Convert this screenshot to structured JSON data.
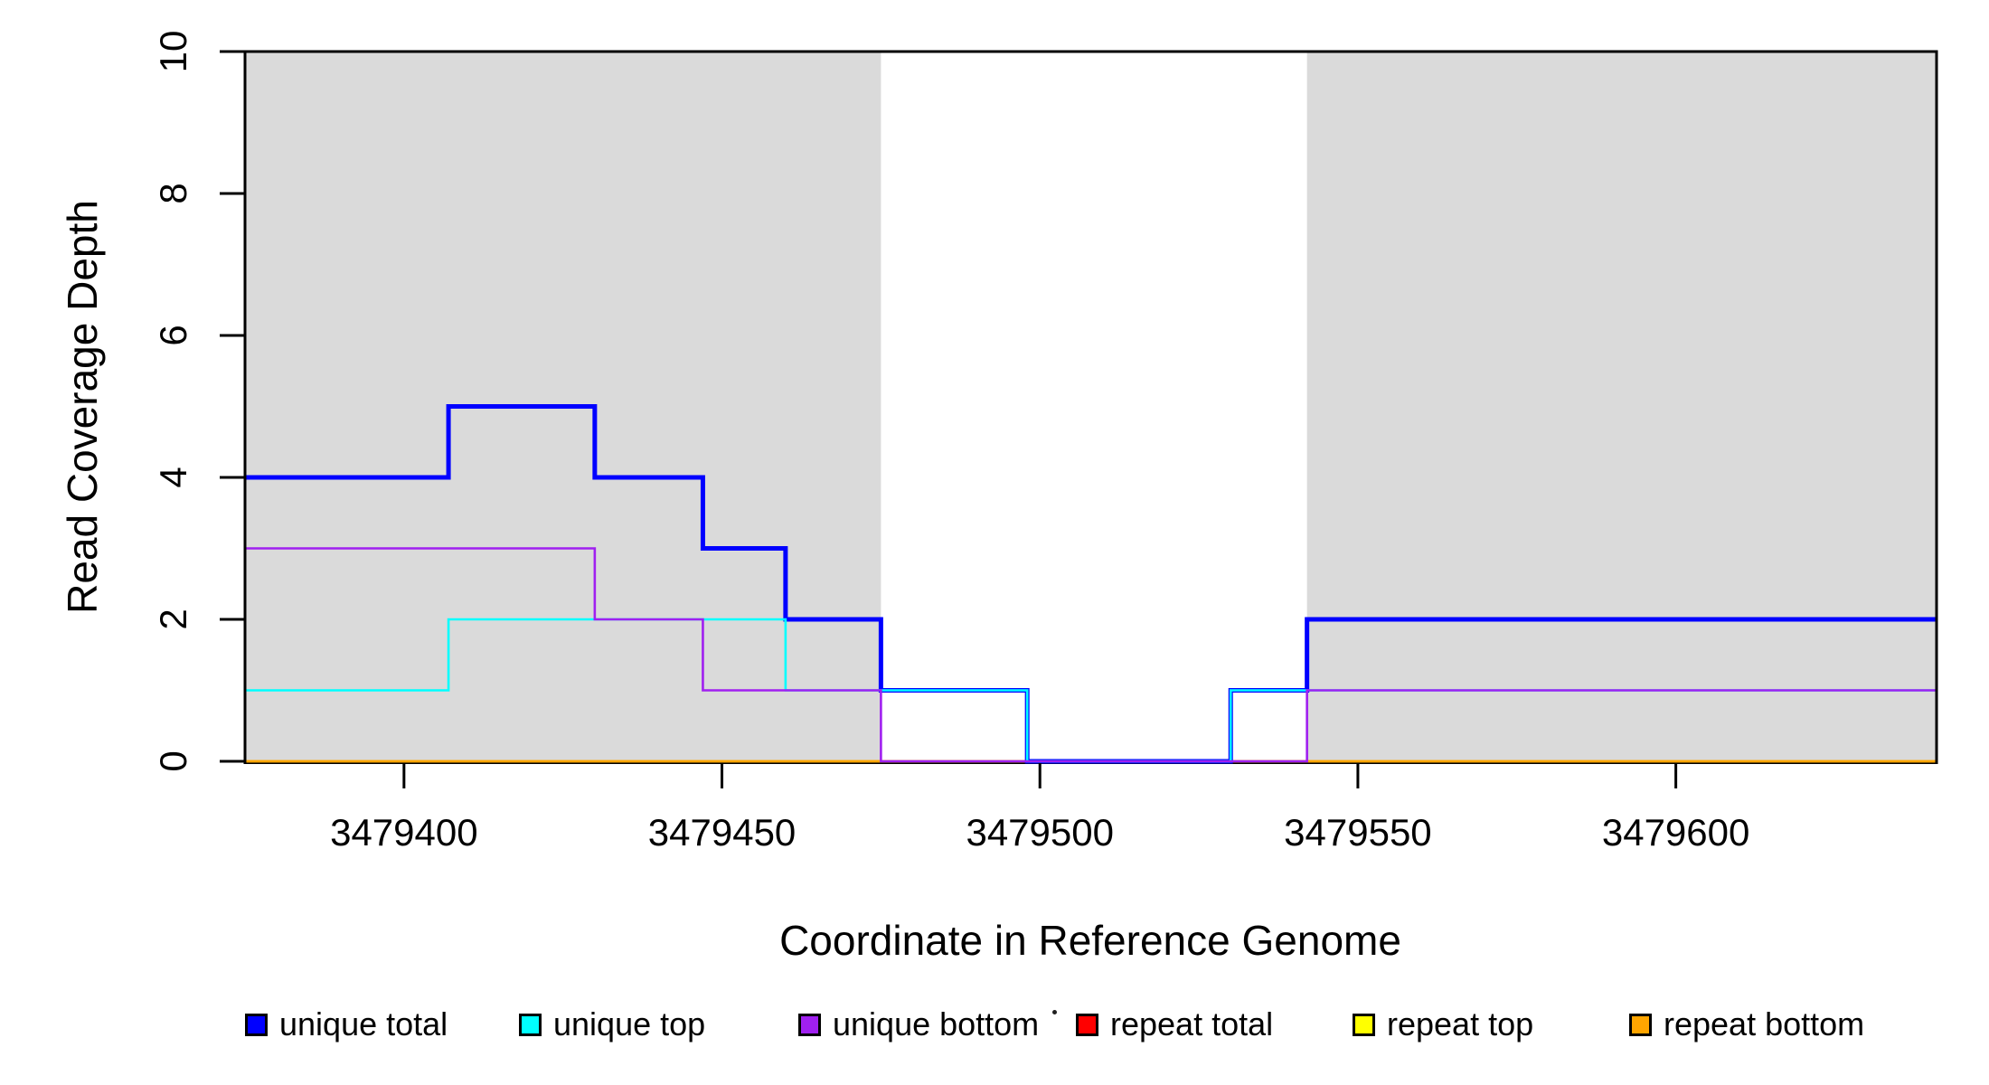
{
  "chart_data": {
    "type": "line",
    "step_mode": "after",
    "title": "",
    "xlabel": "Coordinate in Reference Genome",
    "ylabel": "Read Coverage Depth",
    "xlim": [
      3479375,
      3479641
    ],
    "ylim": [
      0,
      10
    ],
    "x_ticks": [
      "3479400",
      "3479450",
      "3479500",
      "3479550",
      "3479600"
    ],
    "x_tick_values": [
      3479400,
      3479450,
      3479500,
      3479550,
      3479600
    ],
    "y_ticks": [
      "0",
      "2",
      "4",
      "6",
      "8",
      "10"
    ],
    "y_tick_values": [
      0,
      2,
      4,
      6,
      8,
      10
    ],
    "grid": false,
    "legend_position": "bottom-horizontal",
    "shaded_regions": {
      "color": "#DADADA",
      "ranges": [
        [
          3479375,
          3479475
        ],
        [
          3479542,
          3479641
        ]
      ]
    },
    "series": [
      {
        "name": "unique total",
        "color": "#0000FF",
        "width": 5,
        "points": [
          [
            3479375,
            4
          ],
          [
            3479407,
            5
          ],
          [
            3479430,
            4
          ],
          [
            3479447,
            3
          ],
          [
            3479460,
            2
          ],
          [
            3479475,
            1
          ],
          [
            3479498,
            0
          ],
          [
            3479530,
            1
          ],
          [
            3479542,
            2
          ]
        ]
      },
      {
        "name": "unique top",
        "color": "#00FFFF",
        "width": 2.6,
        "points": [
          [
            3479375,
            1
          ],
          [
            3479407,
            2
          ],
          [
            3479460,
            1
          ],
          [
            3479498,
            0
          ],
          [
            3479530,
            1
          ]
        ]
      },
      {
        "name": "unique bottom",
        "color": "#A020F0",
        "width": 2.6,
        "points": [
          [
            3479375,
            3
          ],
          [
            3479430,
            2
          ],
          [
            3479447,
            1
          ],
          [
            3479475,
            0
          ],
          [
            3479542,
            1
          ]
        ]
      },
      {
        "name": "repeat total",
        "color": "#FF0000",
        "width": 2.6,
        "points": [
          [
            3479375,
            0
          ]
        ]
      },
      {
        "name": "repeat top",
        "color": "#FFFF00",
        "width": 2.6,
        "points": [
          [
            3479375,
            0
          ]
        ]
      },
      {
        "name": "repeat bottom",
        "color": "#FFA500",
        "width": 2.6,
        "points": [
          [
            3479375,
            0
          ]
        ]
      }
    ],
    "baseline_overlap_tints": [
      {
        "x1": 3479475,
        "x2": 3479498,
        "color": "#DD6F7B"
      },
      {
        "x1": 3479530,
        "x2": 3479542,
        "color": "#DD6F7B"
      }
    ],
    "axis_color": "#000000"
  }
}
